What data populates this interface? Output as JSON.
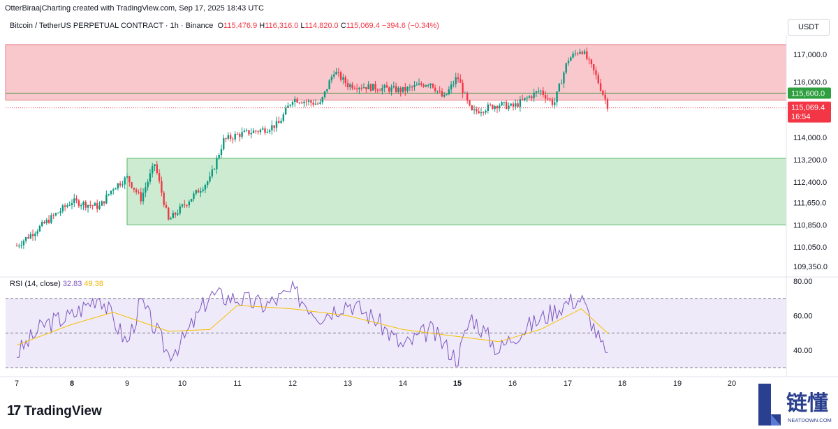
{
  "header": {
    "credit": "OtterBiraajCharting created with TradingView.com, Sep 17, 2025 18:43 UTC",
    "symbol": "Bitcoin / TetherUS PERPETUAL CONTRACT · 1h · Binance",
    "open_label": "O",
    "open": "115,476.9",
    "high_label": "H",
    "high": "116,316.0",
    "low_label": "L",
    "low": "114,820.0",
    "close_label": "C",
    "close": "115,069.4",
    "change": "−394.6 (−0.34%)",
    "currency": "USDT"
  },
  "price_axis": {
    "ticks": [
      "117,000.0",
      "116,000.0",
      "114,000.0",
      "113,200.0",
      "112,400.0",
      "111,650.0",
      "110,850.0",
      "110,050.0",
      "109,350.0"
    ],
    "level_label": "115,600.0",
    "current_price": "115,069.4",
    "countdown": "16:54"
  },
  "rsi": {
    "title": "RSI (14, close)",
    "rsi_value": "32.83",
    "ma_value": "49.38",
    "ticks": [
      "80.00",
      "60.00",
      "40.00"
    ]
  },
  "time_axis": {
    "labels": [
      "7",
      "8",
      "9",
      "10",
      "11",
      "12",
      "13",
      "14",
      "15",
      "16",
      "17",
      "18",
      "19",
      "20"
    ]
  },
  "footer": {
    "brand": "TradingView",
    "watermark_text": "链懂",
    "watermark_sub": "NEATDOWN.COM"
  },
  "colors": {
    "up": "#089981",
    "down": "#f23645",
    "resistance_zone": "#f9c8cc",
    "support_zone": "#cdebd1",
    "rsi_line": "#7e57c2",
    "rsi_ma": "#f5c000",
    "rsi_band": "#efeaf9"
  },
  "chart_data": {
    "type": "candlestick",
    "interval": "1h",
    "x_dates": [
      "Sep 7",
      "Sep 8",
      "Sep 9",
      "Sep 10",
      "Sep 11",
      "Sep 12",
      "Sep 13",
      "Sep 14",
      "Sep 15",
      "Sep 16",
      "Sep 17",
      "Sep 18",
      "Sep 19",
      "Sep 20"
    ],
    "price_range": [
      109100,
      117600
    ],
    "resistance_zone": [
      115350,
      117350
    ],
    "support_zone": [
      110850,
      113250
    ],
    "horizontal_level": 115600,
    "price_path": [
      {
        "date": "Sep 7 00:00",
        "close": 110100
      },
      {
        "date": "Sep 7 12:00",
        "close": 110900
      },
      {
        "date": "Sep 8 00:00",
        "close": 111700
      },
      {
        "date": "Sep 8 12:00",
        "close": 111500
      },
      {
        "date": "Sep 8 18:00",
        "close": 112200
      },
      {
        "date": "Sep 9 00:00",
        "close": 112550
      },
      {
        "date": "Sep 9 06:00",
        "close": 111800
      },
      {
        "date": "Sep 9 12:00",
        "close": 113050
      },
      {
        "date": "Sep 9 18:00",
        "close": 111000
      },
      {
        "date": "Sep 10 00:00",
        "close": 111500
      },
      {
        "date": "Sep 10 12:00",
        "close": 112500
      },
      {
        "date": "Sep 10 18:00",
        "close": 113900
      },
      {
        "date": "Sep 11 00:00",
        "close": 114100
      },
      {
        "date": "Sep 11 12:00",
        "close": 114300
      },
      {
        "date": "Sep 11 18:00",
        "close": 114500
      },
      {
        "date": "Sep 12 00:00",
        "close": 115400
      },
      {
        "date": "Sep 12 12:00",
        "close": 115200
      },
      {
        "date": "Sep 12 18:00",
        "close": 116400
      },
      {
        "date": "Sep 13 00:00",
        "close": 115900
      },
      {
        "date": "Sep 13 12:00",
        "close": 115800
      },
      {
        "date": "Sep 14 00:00",
        "close": 115700
      },
      {
        "date": "Sep 14 12:00",
        "close": 116000
      },
      {
        "date": "Sep 14 18:00",
        "close": 115400
      },
      {
        "date": "Sep 15 00:00",
        "close": 116200
      },
      {
        "date": "Sep 15 06:00",
        "close": 114900
      },
      {
        "date": "Sep 15 18:00",
        "close": 115200
      },
      {
        "date": "Sep 16 00:00",
        "close": 115100
      },
      {
        "date": "Sep 16 12:00",
        "close": 115700
      },
      {
        "date": "Sep 16 18:00",
        "close": 115200
      },
      {
        "date": "Sep 17 00:00",
        "close": 116800
      },
      {
        "date": "Sep 17 06:00",
        "close": 117200
      },
      {
        "date": "Sep 17 12:00",
        "close": 116300
      },
      {
        "date": "Sep 17 18:00",
        "close": 115069.4
      }
    ],
    "rsi_range": [
      28,
      82
    ],
    "rsi_levels": [
      70,
      50,
      30
    ],
    "rsi_path": [
      {
        "date": "Sep 7 00:00",
        "rsi": 38
      },
      {
        "date": "Sep 7 12:00",
        "rsi": 55
      },
      {
        "date": "Sep 8 00:00",
        "rsi": 60
      },
      {
        "date": "Sep 8 12:00",
        "rsi": 72
      },
      {
        "date": "Sep 9 00:00",
        "rsi": 44
      },
      {
        "date": "Sep 9 06:00",
        "rsi": 68
      },
      {
        "date": "Sep 9 18:00",
        "rsi": 38
      },
      {
        "date": "Sep 10 00:00",
        "rsi": 45
      },
      {
        "date": "Sep 10 12:00",
        "rsi": 72
      },
      {
        "date": "Sep 11 00:00",
        "rsi": 70
      },
      {
        "date": "Sep 11 12:00",
        "rsi": 66
      },
      {
        "date": "Sep 12 00:00",
        "rsi": 74
      },
      {
        "date": "Sep 12 12:00",
        "rsi": 60
      },
      {
        "date": "Sep 13 00:00",
        "rsi": 68
      },
      {
        "date": "Sep 13 12:00",
        "rsi": 58
      },
      {
        "date": "Sep 14 00:00",
        "rsi": 42
      },
      {
        "date": "Sep 14 12:00",
        "rsi": 52
      },
      {
        "date": "Sep 15 00:00",
        "rsi": 35
      },
      {
        "date": "Sep 15 06:00",
        "rsi": 60
      },
      {
        "date": "Sep 15 18:00",
        "rsi": 40
      },
      {
        "date": "Sep 16 00:00",
        "rsi": 48
      },
      {
        "date": "Sep 16 12:00",
        "rsi": 58
      },
      {
        "date": "Sep 17 00:00",
        "rsi": 68
      },
      {
        "date": "Sep 17 06:00",
        "rsi": 70
      },
      {
        "date": "Sep 17 12:00",
        "rsi": 52
      },
      {
        "date": "Sep 17 18:00",
        "rsi": 32.83
      }
    ],
    "rsi_ma_path": [
      {
        "date": "Sep 7 00:00",
        "ma": 43
      },
      {
        "date": "Sep 8 00:00",
        "ma": 55
      },
      {
        "date": "Sep 8 18:00",
        "ma": 62
      },
      {
        "date": "Sep 9 18:00",
        "ma": 51
      },
      {
        "date": "Sep 10 12:00",
        "ma": 52
      },
      {
        "date": "Sep 11 00:00",
        "ma": 66
      },
      {
        "date": "Sep 12 00:00",
        "ma": 64
      },
      {
        "date": "Sep 13 00:00",
        "ma": 60
      },
      {
        "date": "Sep 14 00:00",
        "ma": 52
      },
      {
        "date": "Sep 15 00:00",
        "ma": 48
      },
      {
        "date": "Sep 15 18:00",
        "ma": 45
      },
      {
        "date": "Sep 16 12:00",
        "ma": 52
      },
      {
        "date": "Sep 17 06:00",
        "ma": 64
      },
      {
        "date": "Sep 17 18:00",
        "ma": 49.38
      }
    ]
  }
}
